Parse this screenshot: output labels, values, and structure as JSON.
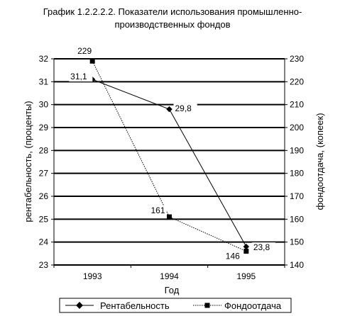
{
  "title_line1": "График 1.2.2.2.2.  Показатели использования промышленно-",
  "title_line2": "производственных фондов",
  "chart_data": {
    "type": "line",
    "categories": [
      "1993",
      "1994",
      "1995"
    ],
    "xlabel": "Год",
    "ylabel_left": "рентабельность, (проценты)",
    "ylabel_right": "фондоотдача, (копеек)",
    "y_left_lim": [
      23,
      32
    ],
    "y_left_ticks": [
      "23",
      "24",
      "25",
      "26",
      "27",
      "28",
      "29",
      "30",
      "31",
      "32"
    ],
    "y_right_lim": [
      140,
      230
    ],
    "y_right_ticks": [
      "140",
      "150",
      "160",
      "170",
      "180",
      "190",
      "200",
      "210",
      "220",
      "230"
    ],
    "grid": true,
    "legend_placement": "bottom",
    "series": [
      {
        "name": "Рентабельность",
        "axis": "left",
        "values": [
          31.1,
          29.8,
          23.8
        ],
        "labels": [
          "31,1",
          "29,8",
          "23,8"
        ],
        "marker": "diamond",
        "line_style": "solid",
        "color": "#000000"
      },
      {
        "name": "Фондоотдача",
        "axis": "right",
        "values": [
          229,
          161,
          146
        ],
        "labels": [
          "229",
          "161",
          "146"
        ],
        "marker": "square",
        "line_style": "dotted",
        "color": "#000000"
      }
    ]
  }
}
